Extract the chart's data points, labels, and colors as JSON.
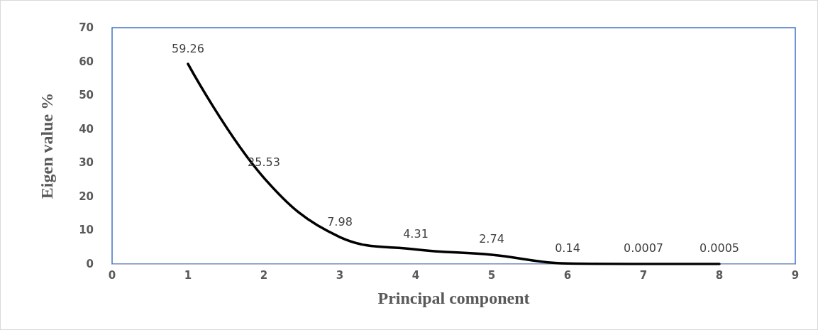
{
  "chart_data": {
    "type": "line",
    "xlabel": "Principal component",
    "ylabel": "Eigen value %",
    "x": [
      1,
      2,
      3,
      4,
      5,
      6,
      7,
      8
    ],
    "series": [
      {
        "color": "#000000",
        "values": [
          59.26,
          25.53,
          7.98,
          4.31,
          2.74,
          0.14,
          0.0007,
          0.0005
        ]
      }
    ],
    "xlim": [
      0,
      9
    ],
    "xticks": [
      0,
      1,
      2,
      3,
      4,
      5,
      6,
      7,
      8,
      9
    ],
    "ylim": [
      0,
      70
    ],
    "yticks": [
      0,
      10,
      20,
      30,
      40,
      50,
      60,
      70
    ],
    "grid": false,
    "marker": "none",
    "line_style": "solid",
    "data_labels": true
  }
}
